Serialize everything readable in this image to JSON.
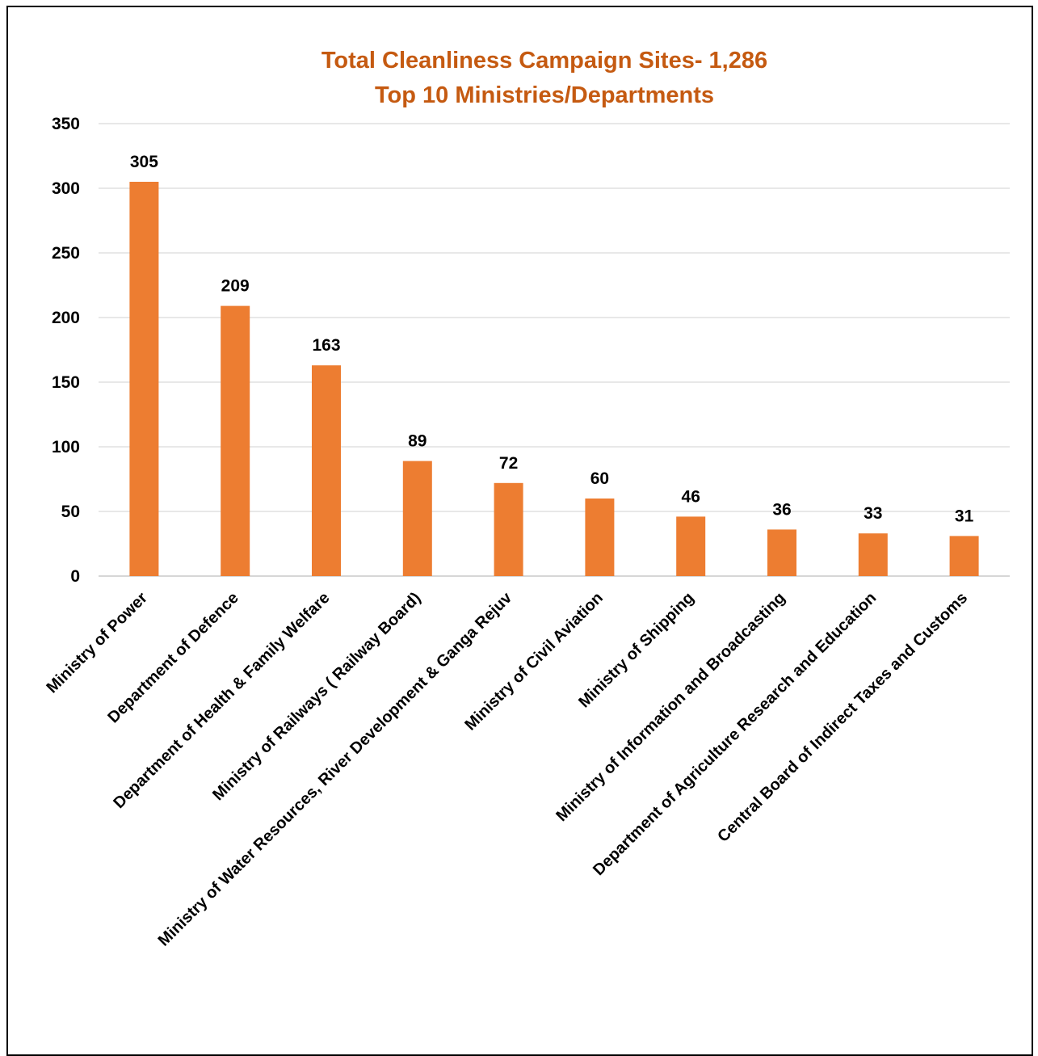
{
  "chart_data": {
    "type": "bar",
    "title": "Total Cleanliness Campaign Sites- 1,286",
    "subtitle": "Top 10 Ministries/Departments",
    "categories": [
      "Ministry of Power",
      "Department of Defence",
      "Department of Health & Family Welfare",
      "Ministry of Railways ( Railway Board)",
      "Ministry of Water Resources, River Development & Ganga Rejuv",
      "Ministry of Civil Aviation",
      "Ministry of Shipping",
      "Ministry of Information and Broadcasting",
      "Department of Agriculture Research and Education",
      "Central Board of Indirect Taxes and Customs"
    ],
    "values": [
      305,
      209,
      163,
      89,
      72,
      60,
      46,
      36,
      33,
      31
    ],
    "xlabel": "",
    "ylabel": "",
    "ylim": [
      0,
      350
    ],
    "yticks": [
      "0",
      "50",
      "100",
      "150",
      "200",
      "250",
      "300",
      "350"
    ],
    "grid": true,
    "data_labels": true,
    "legend": "none",
    "colors": {
      "bar": "#ED7D31",
      "title": "#C55A11",
      "grid": "#D9D9D9",
      "text": "#000000"
    }
  }
}
